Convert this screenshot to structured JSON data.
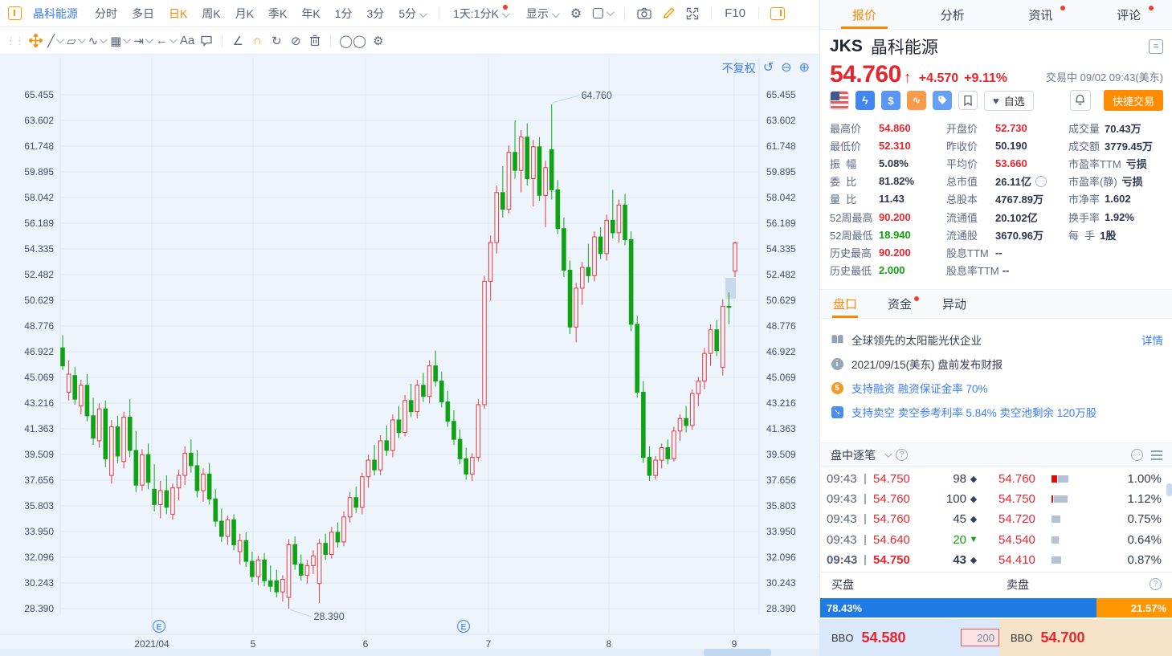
{
  "colors": {
    "up": "#e8393e",
    "down": "#0fa314",
    "accent": "#ff8800",
    "link": "#3d7ef7",
    "buy_bar": "#1f7be4",
    "sell_bar": "#ff9500"
  },
  "toolbar": {
    "window_icon": "window-icon",
    "symbol_button": "晶科能源",
    "periods": [
      {
        "label": "分时"
      },
      {
        "label": "多日"
      },
      {
        "label": "日K",
        "active": true
      },
      {
        "label": "周K"
      },
      {
        "label": "月K"
      },
      {
        "label": "季K"
      },
      {
        "label": "年K"
      },
      {
        "label": "1分"
      },
      {
        "label": "3分"
      },
      {
        "label": "5分",
        "chevron": true
      }
    ],
    "multi_chart": "1天:1分K",
    "display": "显示",
    "f10": "F10",
    "right_icons": [
      "settings-icon",
      "checkbox-icon",
      "camera-icon",
      "pencil-icon",
      "expand-icon",
      "panel-toggle-icon"
    ]
  },
  "draw_toolbar": {
    "icons": [
      {
        "name": "grip-icon",
        "glyph": "⋮⋮"
      },
      {
        "name": "move-tool-icon",
        "svg": "move"
      },
      {
        "name": "line-tool-icon",
        "glyph": "╱",
        "chevron": true
      },
      {
        "name": "shape-tool-icon",
        "glyph": "▱",
        "chevron": true
      },
      {
        "name": "wave-tool-icon",
        "glyph": "∿",
        "chevron": true
      },
      {
        "name": "pattern-tool-icon",
        "glyph": "▦",
        "chevron": true
      },
      {
        "name": "extend-tool-icon",
        "glyph": "⇥",
        "chevron": true
      },
      {
        "name": "arrow-tool-icon",
        "glyph": "←",
        "chevron": true
      },
      {
        "name": "text-tool-icon",
        "glyph": "Aa"
      },
      {
        "name": "comment-tool-icon",
        "svg": "speech"
      },
      {
        "name": "divider"
      },
      {
        "name": "angle-tool-icon",
        "glyph": "∠"
      },
      {
        "name": "magnet-icon",
        "glyph": "∩",
        "accent": true
      },
      {
        "name": "sync-icon",
        "glyph": "↻"
      },
      {
        "name": "hide-icon",
        "glyph": "⊘"
      },
      {
        "name": "trash-icon",
        "svg": "trash"
      },
      {
        "name": "divider"
      },
      {
        "name": "compare-icon",
        "glyph": "◯◯"
      },
      {
        "name": "settings2-icon",
        "glyph": "⚙"
      }
    ]
  },
  "chart": {
    "adjust": "不复权",
    "controls": [
      "undo-icon",
      "zoom-out-icon",
      "zoom-in-icon"
    ],
    "control_glyphs": [
      "↺",
      "⊖",
      "⊕"
    ],
    "earnings_marker": "E"
  },
  "chart_data": {
    "type": "candlestick",
    "symbol": "JKS",
    "period": "日K",
    "adjust": "不复权",
    "high_label": "64.760",
    "low_label": "28.390",
    "x_ticks": [
      "2021/04",
      "5",
      "6",
      "7",
      "8",
      "9"
    ],
    "y_ticks": [
      "65.455",
      "63.602",
      "61.748",
      "59.895",
      "58.042",
      "56.189",
      "54.335",
      "52.482",
      "50.629",
      "48.776",
      "46.922",
      "45.069",
      "43.216",
      "41.363",
      "39.509",
      "37.656",
      "35.803",
      "33.950",
      "32.096",
      "30.243",
      "28.390"
    ],
    "ylim": [
      28.39,
      65.455
    ],
    "up_color": "#e8393e",
    "down_color": "#0fa314",
    "grid": true,
    "ohlc": [
      [
        47.2,
        48.1,
        45.6,
        45.9
      ],
      [
        44.0,
        46.3,
        43.4,
        45.3
      ],
      [
        45.2,
        45.8,
        43.1,
        43.5
      ],
      [
        43.0,
        44.9,
        42.4,
        44.5
      ],
      [
        44.5,
        45.3,
        41.9,
        42.3
      ],
      [
        42.3,
        43.6,
        40.2,
        40.7
      ],
      [
        40.5,
        43.2,
        40.0,
        42.8
      ],
      [
        42.8,
        43.4,
        38.6,
        39.2
      ],
      [
        38.0,
        42.0,
        37.4,
        41.5
      ],
      [
        41.5,
        42.3,
        38.9,
        39.4
      ],
      [
        39.0,
        42.6,
        38.5,
        42.2
      ],
      [
        42.2,
        43.5,
        39.3,
        39.8
      ],
      [
        39.8,
        41.2,
        36.8,
        37.3
      ],
      [
        37.3,
        39.9,
        36.9,
        39.5
      ],
      [
        39.5,
        40.3,
        37.0,
        37.5
      ],
      [
        37.0,
        38.8,
        35.4,
        35.9
      ],
      [
        35.9,
        37.6,
        34.9,
        36.9
      ],
      [
        36.9,
        38.0,
        35.2,
        35.7
      ],
      [
        35.2,
        37.4,
        34.8,
        37.1
      ],
      [
        37.1,
        38.4,
        36.2,
        38.0
      ],
      [
        38.0,
        40.1,
        37.3,
        39.6
      ],
      [
        39.6,
        40.6,
        38.2,
        38.7
      ],
      [
        38.7,
        39.8,
        36.4,
        36.9
      ],
      [
        36.9,
        38.5,
        36.1,
        38.1
      ],
      [
        38.1,
        38.9,
        35.9,
        36.3
      ],
      [
        36.3,
        37.0,
        34.3,
        34.7
      ],
      [
        34.7,
        35.6,
        33.2,
        33.6
      ],
      [
        33.6,
        35.1,
        33.0,
        34.8
      ],
      [
        34.8,
        35.2,
        32.6,
        33.0
      ],
      [
        32.5,
        33.8,
        31.6,
        33.3
      ],
      [
        33.3,
        33.9,
        31.4,
        31.8
      ],
      [
        31.8,
        32.5,
        30.3,
        30.7
      ],
      [
        30.7,
        32.2,
        30.1,
        31.9
      ],
      [
        31.9,
        32.4,
        30.0,
        30.4
      ],
      [
        30.4,
        31.5,
        29.6,
        30.0
      ],
      [
        30.4,
        31.2,
        29.2,
        29.6
      ],
      [
        29.6,
        30.8,
        28.9,
        30.5
      ],
      [
        29.2,
        33.4,
        28.39,
        33.0
      ],
      [
        33.0,
        33.6,
        31.2,
        31.6
      ],
      [
        31.6,
        32.3,
        30.4,
        30.8
      ],
      [
        30.8,
        31.9,
        30.2,
        31.5
      ],
      [
        31.5,
        32.6,
        30.9,
        32.2
      ],
      [
        30.2,
        33.4,
        28.8,
        33.1
      ],
      [
        33.1,
        33.8,
        31.9,
        32.3
      ],
      [
        32.3,
        34.3,
        32.0,
        33.9
      ],
      [
        33.9,
        34.6,
        32.8,
        33.2
      ],
      [
        33.2,
        35.4,
        32.9,
        35.0
      ],
      [
        35.0,
        36.8,
        34.6,
        36.4
      ],
      [
        36.4,
        37.2,
        35.3,
        35.7
      ],
      [
        35.7,
        38.2,
        35.2,
        37.9
      ],
      [
        37.9,
        39.5,
        37.1,
        39.1
      ],
      [
        39.1,
        40.2,
        38.0,
        38.4
      ],
      [
        38.4,
        40.9,
        38.0,
        40.5
      ],
      [
        40.5,
        41.6,
        39.4,
        39.8
      ],
      [
        39.8,
        42.4,
        39.3,
        42.0
      ],
      [
        42.0,
        43.0,
        40.7,
        41.1
      ],
      [
        41.1,
        43.8,
        40.8,
        43.4
      ],
      [
        43.4,
        44.6,
        42.2,
        42.6
      ],
      [
        42.6,
        44.9,
        42.1,
        44.5
      ],
      [
        44.5,
        45.4,
        43.3,
        43.7
      ],
      [
        43.7,
        46.3,
        43.2,
        45.9
      ],
      [
        45.9,
        47.0,
        44.4,
        44.8
      ],
      [
        44.8,
        45.5,
        42.9,
        43.3
      ],
      [
        43.3,
        44.1,
        41.5,
        41.9
      ],
      [
        41.9,
        42.7,
        40.2,
        40.6
      ],
      [
        40.6,
        41.3,
        38.8,
        39.2
      ],
      [
        39.2,
        40.0,
        37.7,
        38.1
      ],
      [
        38.1,
        39.6,
        37.6,
        39.3
      ],
      [
        39.3,
        43.5,
        39.0,
        43.1
      ],
      [
        43.1,
        52.4,
        42.8,
        52.0
      ],
      [
        52.0,
        55.3,
        50.6,
        54.8
      ],
      [
        54.8,
        58.9,
        54.0,
        58.4
      ],
      [
        58.4,
        60.3,
        56.6,
        57.2
      ],
      [
        57.2,
        61.8,
        56.9,
        61.3
      ],
      [
        61.3,
        63.6,
        59.4,
        60.0
      ],
      [
        60.0,
        62.9,
        58.4,
        62.4
      ],
      [
        62.4,
        63.4,
        58.9,
        59.4
      ],
      [
        59.4,
        62.2,
        57.4,
        61.7
      ],
      [
        61.7,
        62.4,
        57.8,
        58.2
      ],
      [
        58.2,
        60.7,
        55.9,
        60.2
      ],
      [
        61.5,
        64.76,
        57.9,
        58.6
      ],
      [
        58.6,
        59.3,
        55.4,
        55.8
      ],
      [
        55.8,
        56.6,
        52.3,
        52.8
      ],
      [
        52.8,
        53.5,
        48.2,
        48.7
      ],
      [
        48.7,
        51.9,
        47.6,
        51.5
      ],
      [
        51.5,
        53.4,
        50.3,
        53.0
      ],
      [
        53.0,
        54.7,
        51.9,
        52.4
      ],
      [
        52.4,
        55.6,
        52.0,
        55.2
      ],
      [
        55.2,
        55.9,
        53.6,
        54.0
      ],
      [
        54.0,
        56.8,
        53.5,
        56.4
      ],
      [
        56.4,
        58.6,
        55.1,
        55.5
      ],
      [
        55.5,
        57.9,
        54.8,
        57.5
      ],
      [
        57.5,
        58.3,
        54.6,
        55.0
      ],
      [
        55.0,
        55.6,
        48.4,
        48.9
      ],
      [
        48.9,
        49.5,
        43.6,
        44.0
      ],
      [
        44.0,
        44.8,
        38.9,
        39.3
      ],
      [
        39.3,
        40.1,
        37.6,
        38.0
      ],
      [
        38.0,
        39.4,
        37.7,
        39.1
      ],
      [
        39.1,
        40.3,
        38.5,
        40.0
      ],
      [
        40.0,
        40.6,
        38.8,
        39.2
      ],
      [
        39.2,
        41.5,
        39.0,
        41.2
      ],
      [
        41.2,
        42.4,
        40.5,
        42.1
      ],
      [
        42.1,
        43.0,
        41.1,
        41.6
      ],
      [
        41.6,
        44.2,
        41.3,
        43.9
      ],
      [
        43.9,
        45.1,
        43.0,
        44.8
      ],
      [
        44.8,
        47.2,
        44.2,
        46.8
      ],
      [
        46.8,
        48.9,
        45.9,
        48.5
      ],
      [
        48.5,
        49.2,
        46.6,
        47.0
      ],
      [
        45.8,
        50.7,
        45.2,
        50.2
      ],
      [
        50.2,
        51.2,
        48.9,
        50.19
      ],
      [
        52.73,
        54.86,
        52.31,
        54.76
      ]
    ]
  },
  "panel": {
    "tabs": [
      {
        "label": "报价",
        "active": true
      },
      {
        "label": "分析"
      },
      {
        "label": "资讯",
        "dot": true
      },
      {
        "label": "评论",
        "dot": true
      }
    ],
    "symbol": "JKS",
    "name": "晶科能源",
    "price": "54.760",
    "up_arrow": "↑",
    "change": "+4.570",
    "change_pct": "+9.11%",
    "status": "交易中 09/02 09:43(美东)",
    "badges": [
      "us-flag-icon",
      "lightning-icon",
      "dollar-icon",
      "trend-icon",
      "tag-icon",
      "bookmark-icon"
    ],
    "watchlist": "自选",
    "quick_trade": "快捷交易",
    "grid": [
      [
        {
          "l": "最高价",
          "v": "54.860",
          "c": "up"
        },
        {
          "l": "开盘价",
          "v": "52.730",
          "c": "up"
        },
        {
          "l": "成交量",
          "v": "70.43万"
        }
      ],
      [
        {
          "l": "最低价",
          "v": "52.310",
          "c": "up"
        },
        {
          "l": "昨收价",
          "v": "50.190"
        },
        {
          "l": "成交额",
          "v": "3779.45万"
        }
      ],
      [
        {
          "l": "振  幅",
          "v": "5.08%"
        },
        {
          "l": "平均价",
          "v": "53.660",
          "c": "up"
        },
        {
          "l": "市盈率TTM",
          "v": "亏损"
        }
      ],
      [
        {
          "l": "委  比",
          "v": "81.82%"
        },
        {
          "l": "总市值",
          "v": "26.11亿",
          "more": true
        },
        {
          "l": "市盈率(静)",
          "v": "亏损"
        }
      ],
      [
        {
          "l": "量  比",
          "v": "11.43"
        },
        {
          "l": "总股本",
          "v": "4767.89万"
        },
        {
          "l": "市净率",
          "v": "1.602"
        }
      ],
      [
        {
          "l": "52周最高",
          "v": "90.200",
          "c": "up"
        },
        {
          "l": "流通值",
          "v": "20.102亿"
        },
        {
          "l": "换手率",
          "v": "1.92%"
        }
      ],
      [
        {
          "l": "52周最低",
          "v": "18.940",
          "c": "down"
        },
        {
          "l": "流通股",
          "v": "3670.96万"
        },
        {
          "l": "每  手",
          "v": "1股"
        }
      ],
      [
        {
          "l": "历史最高",
          "v": "90.200",
          "c": "up"
        },
        {
          "l": "股息TTM",
          "v": "--"
        },
        null
      ],
      [
        {
          "l": "历史最低",
          "v": "2.000",
          "c": "down"
        },
        {
          "l": "股息率TTM",
          "v": "--"
        },
        null
      ]
    ],
    "pankou_tabs": [
      {
        "label": "盘口",
        "active": true
      },
      {
        "label": "资金",
        "dot": true
      },
      {
        "label": "异动"
      }
    ],
    "info_rows": [
      {
        "icon": "book-icon",
        "text": "全球领先的太阳能光伏企业",
        "link": "详情"
      },
      {
        "icon": "info-icon",
        "text": "2021/09/15(美东)  盘前发布财报"
      },
      {
        "icon": "margin-icon",
        "text": "支持融资 融资保证金率 70%",
        "blue": true
      },
      {
        "icon": "short-icon",
        "text": "支持卖空 卖空参考利率 5.84% 卖空池剩余 120万股",
        "blue": true
      }
    ],
    "ticks": {
      "title": "盘中逐笔",
      "rows": [
        {
          "time": "09:43",
          "price": "54.750",
          "vol": "98",
          "dir": "up",
          "p2": "54.760",
          "pct": "1.00%",
          "bar": [
            [
              "up",
              7
            ],
            [
              "gray",
              13
            ]
          ]
        },
        {
          "time": "09:43",
          "price": "54.760",
          "vol": "100",
          "dir": "up",
          "p2": "54.750",
          "pct": "1.12%",
          "bar": [
            [
              "up",
              2
            ],
            [
              "gray",
              17
            ]
          ]
        },
        {
          "time": "09:43",
          "price": "54.760",
          "vol": "45",
          "dir": "up",
          "p2": "54.720",
          "pct": "0.75%",
          "bar": [
            [
              "gray",
              11
            ]
          ]
        },
        {
          "time": "09:43",
          "price": "54.640",
          "vol": "20",
          "dir": "down",
          "p2": "54.540",
          "pct": "0.64%",
          "bar": [
            [
              "gray",
              9
            ]
          ]
        },
        {
          "time": "09:43",
          "price": "54.750",
          "vol": "43",
          "dir": "up",
          "p2": "54.410",
          "pct": "0.87%",
          "bar": [
            [
              "gray",
              12
            ]
          ],
          "bold": true
        }
      ]
    },
    "depth": {
      "buy_label": "买盘",
      "sell_label": "卖盘",
      "buy_pct": "78.43%",
      "sell_pct": "21.57%",
      "bid_tag": "BBO",
      "bid": "54.580",
      "pending": "200",
      "ask_tag": "BBO",
      "ask": "54.700"
    }
  }
}
